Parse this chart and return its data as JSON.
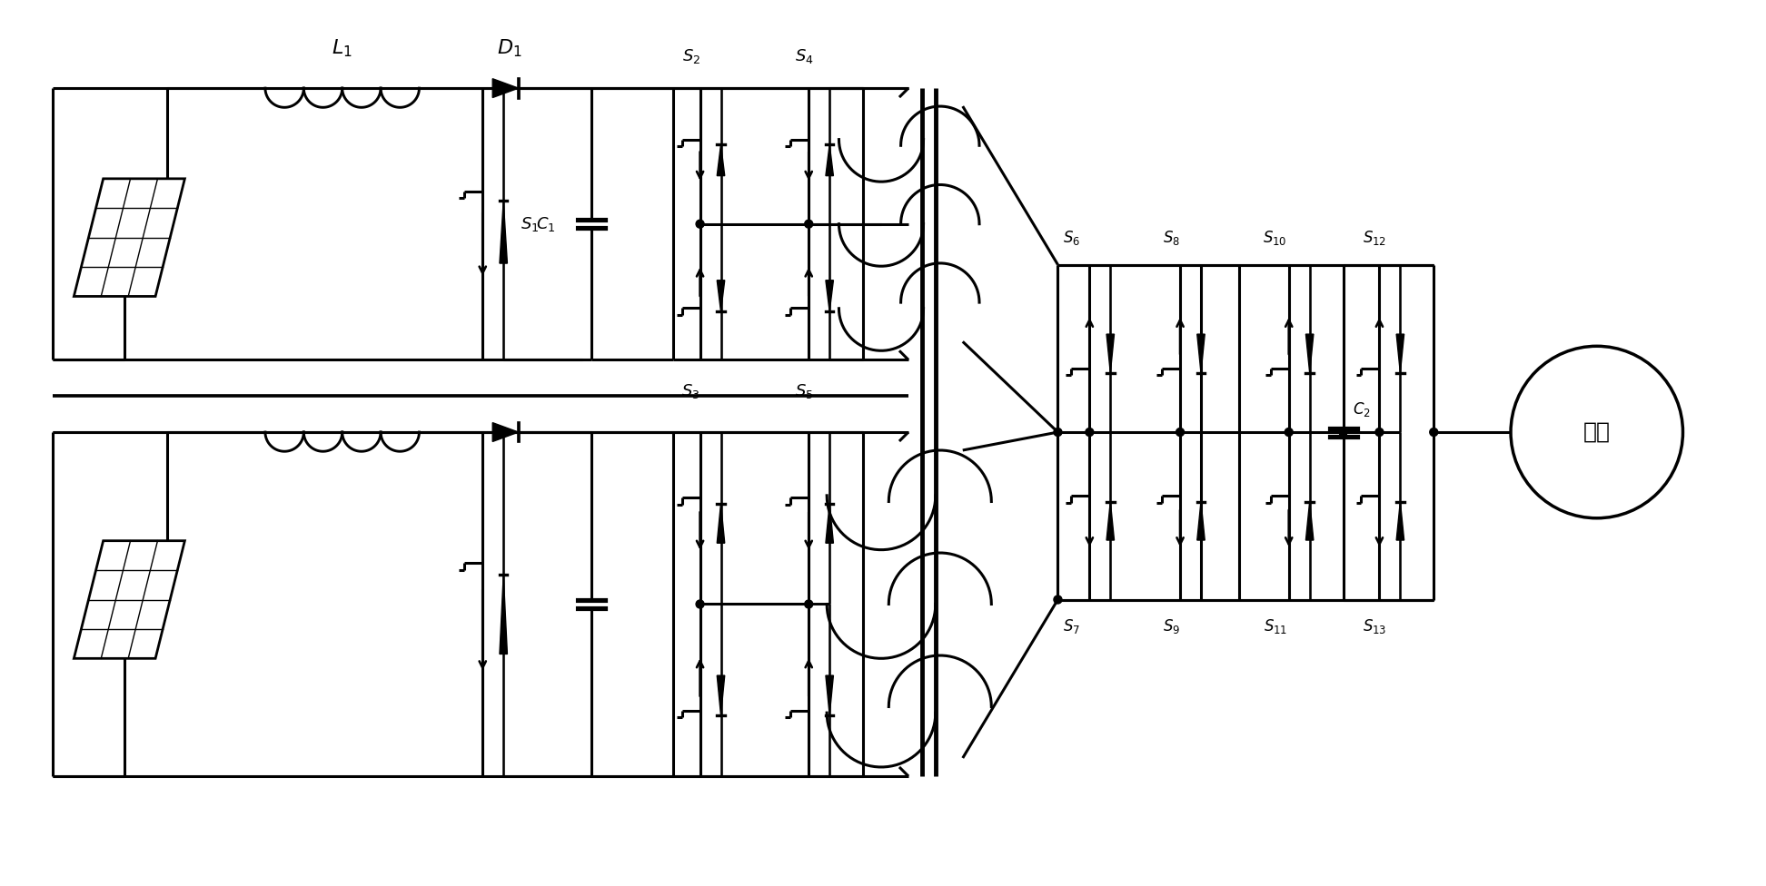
{
  "bg_color": "#ffffff",
  "line_color": "#000000",
  "lw": 2.2,
  "fig_width": 19.44,
  "fig_height": 9.76,
  "labels": {
    "L1": "$L_1$",
    "D1": "$D_1$",
    "S1": "$S_1$",
    "S2": "$S_2$",
    "S3": "$S_3$",
    "S4": "$S_4$",
    "S5": "$S_5$",
    "S6": "$S_6$",
    "S7": "$S_7$",
    "S8": "$S_8$",
    "S9": "$S_9$",
    "S10": "$S_{10}$",
    "S11": "$S_{11}$",
    "S12": "$S_{12}$",
    "S13": "$S_{13}$",
    "C1": "$C_1$",
    "C2": "$C_2$",
    "grid": "电网"
  }
}
